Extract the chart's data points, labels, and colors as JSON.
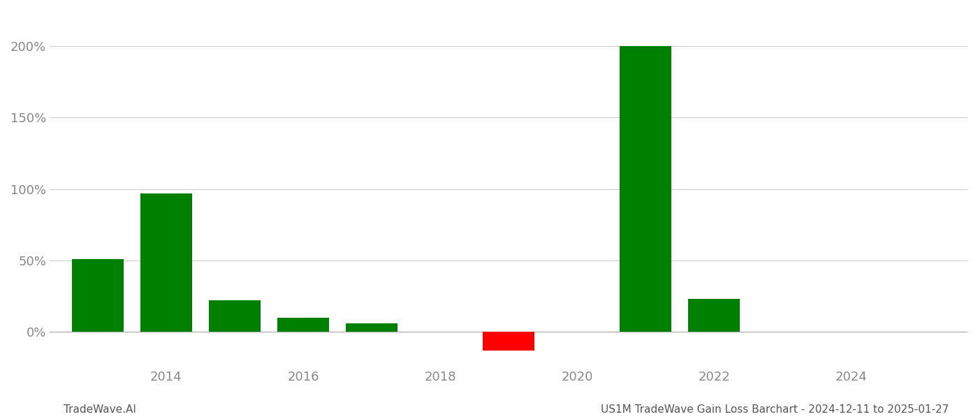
{
  "years": [
    2013,
    2014,
    2015,
    2016,
    2017,
    2019,
    2021,
    2022
  ],
  "values": [
    51.0,
    97.0,
    22.0,
    10.0,
    6.0,
    -13.0,
    200.0,
    23.0
  ],
  "colors": [
    "#008000",
    "#008000",
    "#008000",
    "#008000",
    "#008000",
    "#ff0000",
    "#008000",
    "#008000"
  ],
  "xlim": [
    2012.3,
    2025.7
  ],
  "ylim": [
    -25,
    225
  ],
  "yticks": [
    0,
    50,
    100,
    150,
    200
  ],
  "ytick_labels": [
    "0%",
    "50%",
    "100%",
    "150%",
    "200%"
  ],
  "xticks": [
    2014,
    2016,
    2018,
    2020,
    2022,
    2024
  ],
  "bar_width": 0.75,
  "footer_left": "TradeWave.AI",
  "footer_right": "US1M TradeWave Gain Loss Barchart - 2024-12-11 to 2025-01-27",
  "grid_color": "#cccccc",
  "background_color": "#ffffff",
  "axis_color": "#aaaaaa",
  "text_color": "#888888",
  "footer_color": "#555555",
  "tick_fontsize": 13,
  "footer_fontsize": 11
}
